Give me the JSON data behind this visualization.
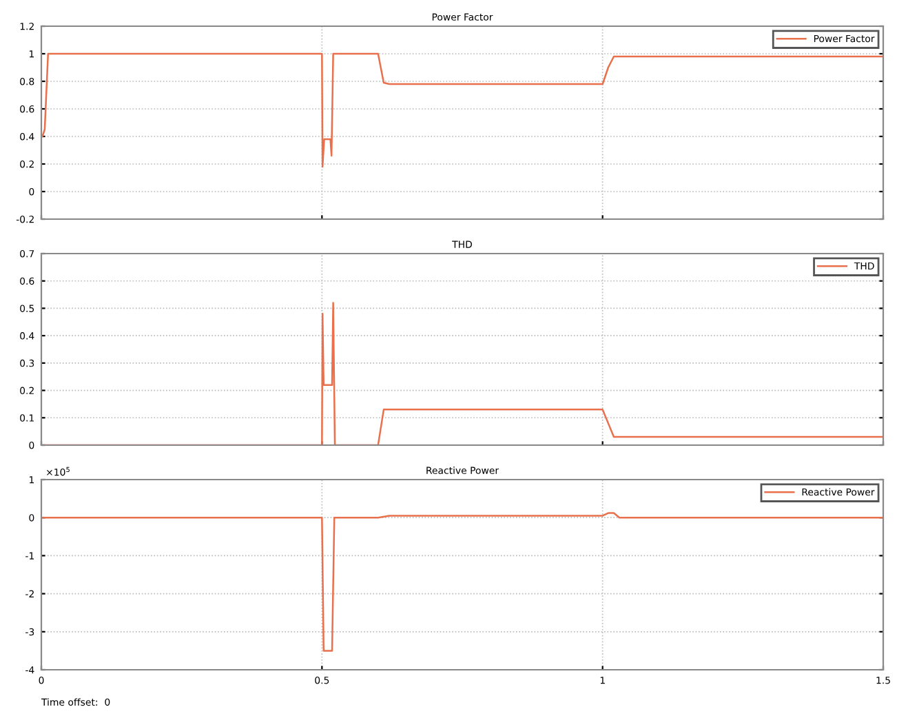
{
  "chart_data": [
    {
      "type": "line",
      "title": "Power Factor",
      "xlim": [
        0,
        1.5
      ],
      "ylim": [
        -0.2,
        1.2
      ],
      "yticks": [
        -0.2,
        0,
        0.2,
        0.4,
        0.6,
        0.8,
        1,
        1.2
      ],
      "xticks": [
        0,
        0.5,
        1,
        1.5
      ],
      "tick_labels": "y",
      "grid": true,
      "legend": "top right",
      "series": [
        {
          "name": "Power Factor",
          "color": "#e8704c",
          "x": [
            0.002,
            0.006,
            0.012,
            0.5,
            0.501,
            0.504,
            0.515,
            0.517,
            0.52,
            0.6,
            0.61,
            0.62,
            1.0,
            1.01,
            1.02,
            1.5
          ],
          "values": [
            0.4,
            0.45,
            1,
            1,
            0.18,
            0.38,
            0.38,
            0.26,
            1,
            1,
            0.79,
            0.78,
            0.78,
            0.9,
            0.98,
            0.98
          ]
        }
      ]
    },
    {
      "type": "line",
      "title": "THD",
      "xlim": [
        0,
        1.5
      ],
      "ylim": [
        0,
        0.7
      ],
      "yticks": [
        0,
        0.1,
        0.2,
        0.3,
        0.4,
        0.5,
        0.6,
        0.7
      ],
      "xticks": [
        0,
        0.5,
        1,
        1.5
      ],
      "tick_labels": "y",
      "grid": true,
      "legend": "top right",
      "series": [
        {
          "name": "THD",
          "color": "#e8704c",
          "x": [
            0,
            0.5,
            0.501,
            0.503,
            0.518,
            0.52,
            0.523,
            0.6,
            0.61,
            1.0,
            1.02,
            1.5
          ],
          "values": [
            0,
            0,
            0.48,
            0.22,
            0.22,
            0.52,
            0,
            0,
            0.13,
            0.13,
            0.03,
            0.03
          ]
        }
      ]
    },
    {
      "type": "line",
      "title": "Reactive Power",
      "xlim": [
        0,
        1.5
      ],
      "ylim": [
        -4,
        1
      ],
      "yticks": [
        -4,
        -3,
        -2,
        -1,
        0,
        1
      ],
      "xticks": [
        0,
        0.5,
        1,
        1.5
      ],
      "grid": true,
      "legend": "top right",
      "annotations": [
        "×10$^{5}$",
        "Time offset:  0"
      ],
      "series": [
        {
          "name": "Reactive Power",
          "color": "#e8704c",
          "x": [
            0,
            0.5,
            0.503,
            0.518,
            0.522,
            0.6,
            0.62,
            1.0,
            1.01,
            1.02,
            1.03,
            1.5
          ],
          "values": [
            0,
            0,
            -3.5,
            -3.5,
            0,
            0,
            0.05,
            0.05,
            0.12,
            0.12,
            0,
            0
          ]
        }
      ]
    }
  ]
}
